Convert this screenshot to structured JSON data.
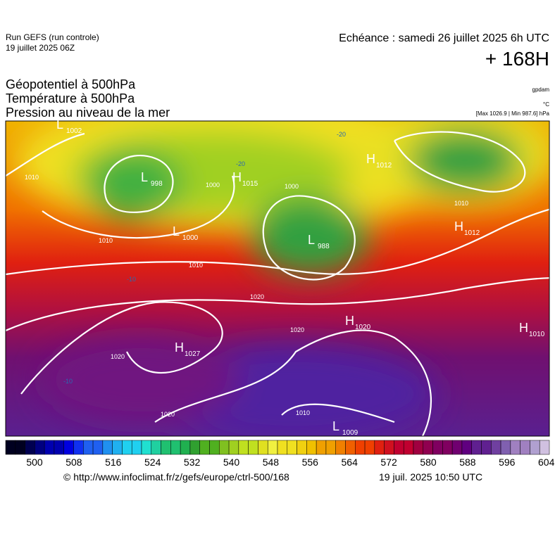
{
  "header": {
    "run": "Run GEFS (run controle)",
    "run_date": "19 juillet 2025 06Z",
    "forecast": "Echéance : samedi 26 juillet 2025 6h UTC",
    "lead": "+ 168H"
  },
  "titles": [
    "Géopotentiel à 500hPa",
    "Température à 500hPa",
    "Pression au niveau de la mer"
  ],
  "units": {
    "geopotential": "gpdam",
    "temperature": "°C",
    "pressure": "[Max 1026.9 | Min 987.6] hPa"
  },
  "centers": [
    {
      "type": "L",
      "value": "1002"
    },
    {
      "type": "L",
      "value": "998"
    },
    {
      "type": "H",
      "value": "1015"
    },
    {
      "type": "H",
      "value": "1012"
    },
    {
      "type": "L",
      "value": "1000"
    },
    {
      "type": "L",
      "value": "988"
    },
    {
      "type": "H",
      "value": "1012"
    },
    {
      "type": "H",
      "value": "1027"
    },
    {
      "type": "H",
      "value": "1020"
    },
    {
      "type": "L",
      "value": "1009"
    },
    {
      "type": "H",
      "value": "1010"
    }
  ],
  "isobar_labels": [
    "1010",
    "1000",
    "1000",
    "1010",
    "1010",
    "1020",
    "1020",
    "1020",
    "1020",
    "1010",
    "1010",
    "-20",
    "-20",
    "-10",
    "-10"
  ],
  "colorbar": {
    "labels": [
      "500",
      "508",
      "516",
      "524",
      "532",
      "540",
      "548",
      "556",
      "564",
      "572",
      "580",
      "588",
      "596",
      "604"
    ]
  },
  "footer": {
    "url": "© http://www.infoclimat.fr/z/gefs/europe/ctrl-500/168",
    "updated": "19 juil. 2025 10:50 UTC"
  }
}
